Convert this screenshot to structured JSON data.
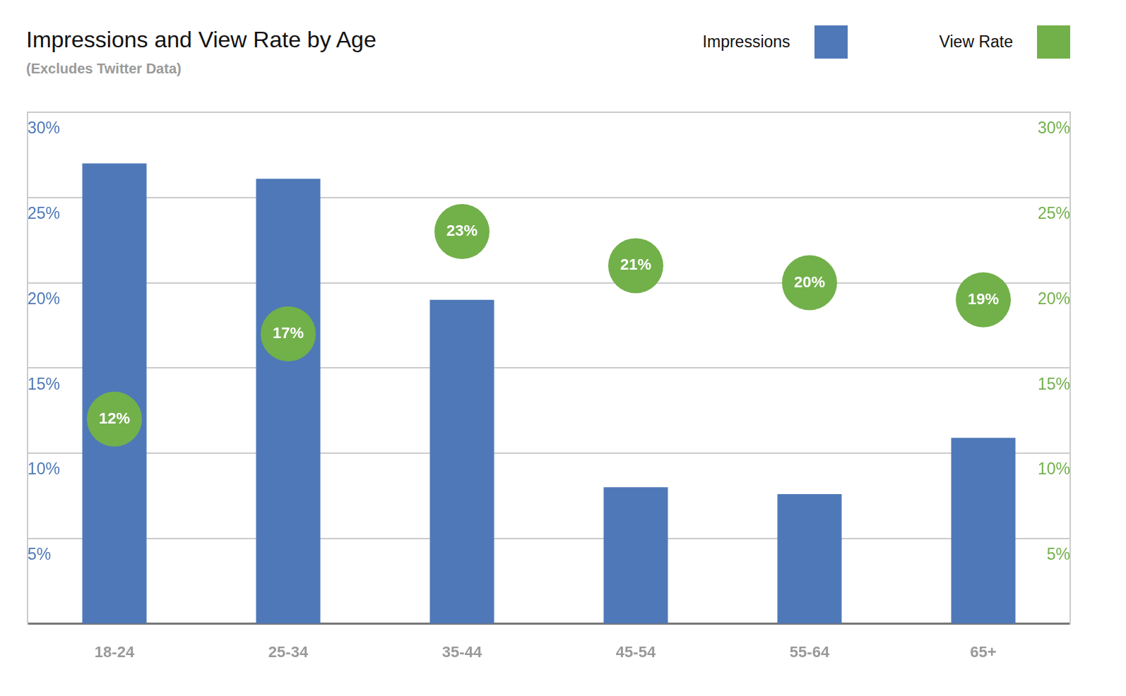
{
  "chart_data": {
    "type": "bar",
    "title": "Impressions and View Rate by Age",
    "subtitle": "(Excludes Twitter Data)",
    "categories": [
      "18-24",
      "25-34",
      "35-44",
      "45-54",
      "55-64",
      "65+"
    ],
    "series": [
      {
        "name": "Impressions",
        "type": "bar",
        "color": "#4e78b8",
        "values": [
          27.0,
          26.1,
          19.0,
          8.0,
          7.6,
          10.9
        ]
      },
      {
        "name": "View Rate",
        "type": "scatter",
        "marker": "circle",
        "color": "#72b04a",
        "axis": "y2",
        "data_labels": true,
        "values": [
          12,
          17,
          23,
          21,
          20,
          19
        ],
        "value_labels": [
          "12%",
          "17%",
          "23%",
          "21%",
          "20%",
          "19%"
        ]
      }
    ],
    "ylim": [
      0,
      30
    ],
    "yticks": [
      {
        "value": 5,
        "label": "5%"
      },
      {
        "value": 10,
        "label": "10%"
      },
      {
        "value": 15,
        "label": "15%"
      },
      {
        "value": 20,
        "label": "20%"
      },
      {
        "value": 25,
        "label": "25%"
      },
      {
        "value": 30,
        "label": "30%"
      }
    ],
    "y2lim": [
      0,
      30
    ],
    "y2ticks": [
      {
        "value": 5,
        "label": "5%"
      },
      {
        "value": 10,
        "label": "10%"
      },
      {
        "value": 15,
        "label": "15%"
      },
      {
        "value": 20,
        "label": "20%"
      },
      {
        "value": 25,
        "label": "25%"
      },
      {
        "value": 30,
        "label": "30%"
      }
    ],
    "grid": true,
    "legend": "upper right"
  }
}
